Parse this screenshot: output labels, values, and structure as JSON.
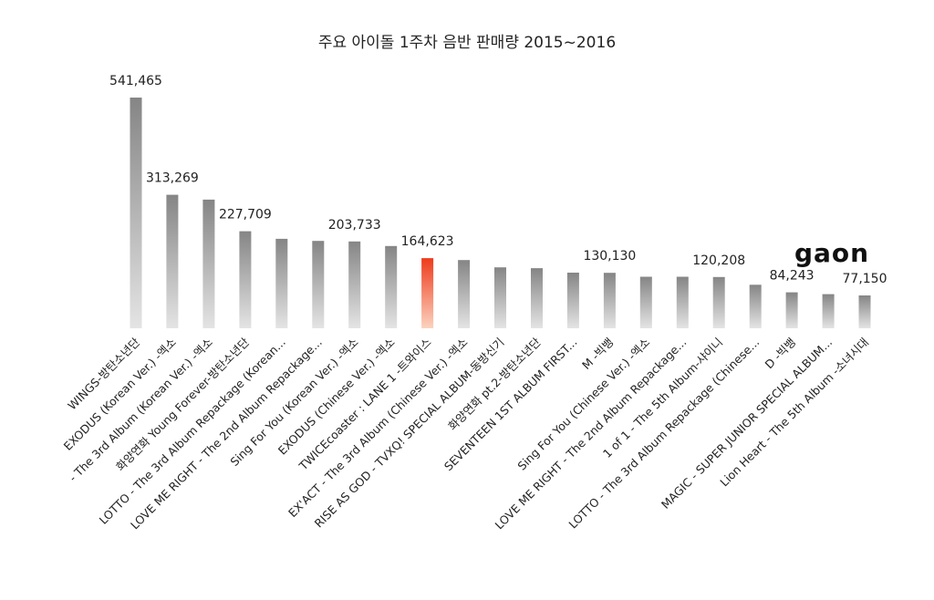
{
  "chart_data": {
    "type": "bar",
    "title": "주요 아이돌 1주차 음반 판매량 2015~2016",
    "categories": [
      "WINGS-방탄소년단",
      "EXODUS (Korean Ver.) -엑소",
      "- The 3rd Album (Korean Ver.) -엑소",
      "화양연화 Young Forever-방탄소년단",
      "LOTTO - The 3rd Album Repackage (Korean...",
      "LOVE ME RIGHT - The 2nd Album Repackage...",
      "Sing For You (Korean Ver.) -엑소",
      "EXODUS (Chinese Ver.) -엑소",
      "TWICEcoaster : LANE 1 -트와이스",
      "EX'ACT - The 3rd Album (Chinese Ver.) -엑소",
      "RISE AS GOD - TVXQ! SPECIAL ALBUM-동방신기",
      "화양연화 pt.2-방탄소년단",
      "SEVENTEEN 1ST ALBUM FIRST...",
      "M -빅뱅",
      "Sing For You (Chinese Ver.) -엑소",
      "LOVE ME RIGHT - The 2nd Album Repackage...",
      "1 of 1 - The 5th Album-샤이니",
      "LOTTO - The 3rd Album Repackage (Chinese...",
      "D -빅뱅",
      "MAGIC - SUPER JUNIOR SPECIAL ALBUM...",
      "Lion Heart - The 5th Album -소녀시대"
    ],
    "values": [
      541465,
      313269,
      302000,
      227709,
      210000,
      205000,
      203733,
      193000,
      164623,
      160000,
      143000,
      141000,
      130500,
      130130,
      121000,
      121000,
      120208,
      102000,
      84243,
      80000,
      77150
    ],
    "data_labels": [
      "541,465",
      "313,269",
      "",
      "227,709",
      "",
      "",
      "203,733",
      "",
      "164,623",
      "",
      "",
      "",
      "",
      "130,130",
      "",
      "",
      "120,208",
      "",
      "84,243",
      "",
      "77,150"
    ],
    "highlight_index": 8,
    "highlight_color": "#ee3b1c",
    "bar_color": "#8a8a8a",
    "ylim": [
      0,
      541465
    ],
    "grid": false,
    "logo_text": "gaon"
  }
}
